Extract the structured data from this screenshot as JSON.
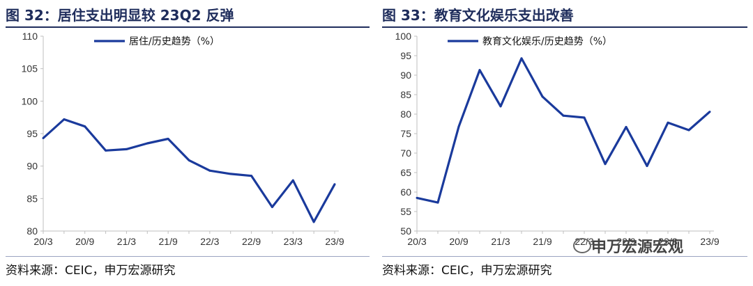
{
  "left_panel": {
    "title": "图 32：居住支出明显较 23Q2 反弹",
    "source": "资料来源：CEIC，申万宏源研究"
  },
  "right_panel": {
    "title": "图 33：教育文化娱乐支出改善",
    "source": "资料来源：CEIC，申万宏源研究"
  },
  "watermark": "申万宏源宏观",
  "colors": {
    "line": "#1a3a9c",
    "title": "#1f2d5c",
    "axis": "#bfbfbf"
  },
  "chart_data": [
    {
      "type": "line",
      "title": "图 32：居住支出明显较 23Q2 反弹",
      "xlabel": "",
      "ylabel": "",
      "x": [
        "20/3",
        "20/6",
        "20/9",
        "20/12",
        "21/3",
        "21/6",
        "21/9",
        "21/12",
        "22/3",
        "22/6",
        "22/9",
        "22/12",
        "23/3",
        "23/6",
        "23/9"
      ],
      "x_tick_labels": [
        "20/3",
        "20/9",
        "21/3",
        "21/9",
        "22/3",
        "22/9",
        "23/3",
        "23/9"
      ],
      "y_ticks": [
        80,
        85,
        90,
        95,
        100,
        105,
        110
      ],
      "ylim": [
        80,
        110
      ],
      "grid": false,
      "legend_position": "top-center",
      "series": [
        {
          "name": "居住/历史趋势（%）",
          "values": [
            94.3,
            97.2,
            96.1,
            92.4,
            92.6,
            93.5,
            94.2,
            90.9,
            89.3,
            88.8,
            88.5,
            83.7,
            87.8,
            81.4,
            87.2
          ]
        }
      ]
    },
    {
      "type": "line",
      "title": "图 33：教育文化娱乐支出改善",
      "xlabel": "",
      "ylabel": "",
      "x": [
        "20/3",
        "20/6",
        "20/9",
        "20/12",
        "21/3",
        "21/6",
        "21/9",
        "21/12",
        "22/3",
        "22/6",
        "22/9",
        "22/12",
        "23/3",
        "23/6",
        "23/9"
      ],
      "x_tick_labels": [
        "20/3",
        "20/9",
        "21/3",
        "21/9",
        "22/3",
        "22/9",
        "23/3",
        "23/9"
      ],
      "y_ticks": [
        50,
        55,
        60,
        65,
        70,
        75,
        80,
        85,
        90,
        95,
        100
      ],
      "ylim": [
        50,
        100
      ],
      "grid": false,
      "legend_position": "top-center",
      "series": [
        {
          "name": "教育文化娱乐/历史趋势（%）",
          "values": [
            58.5,
            57.3,
            76.8,
            91.3,
            82.0,
            94.3,
            84.5,
            79.6,
            79.1,
            67.2,
            76.7,
            66.7,
            77.8,
            75.9,
            80.6
          ]
        }
      ]
    }
  ]
}
